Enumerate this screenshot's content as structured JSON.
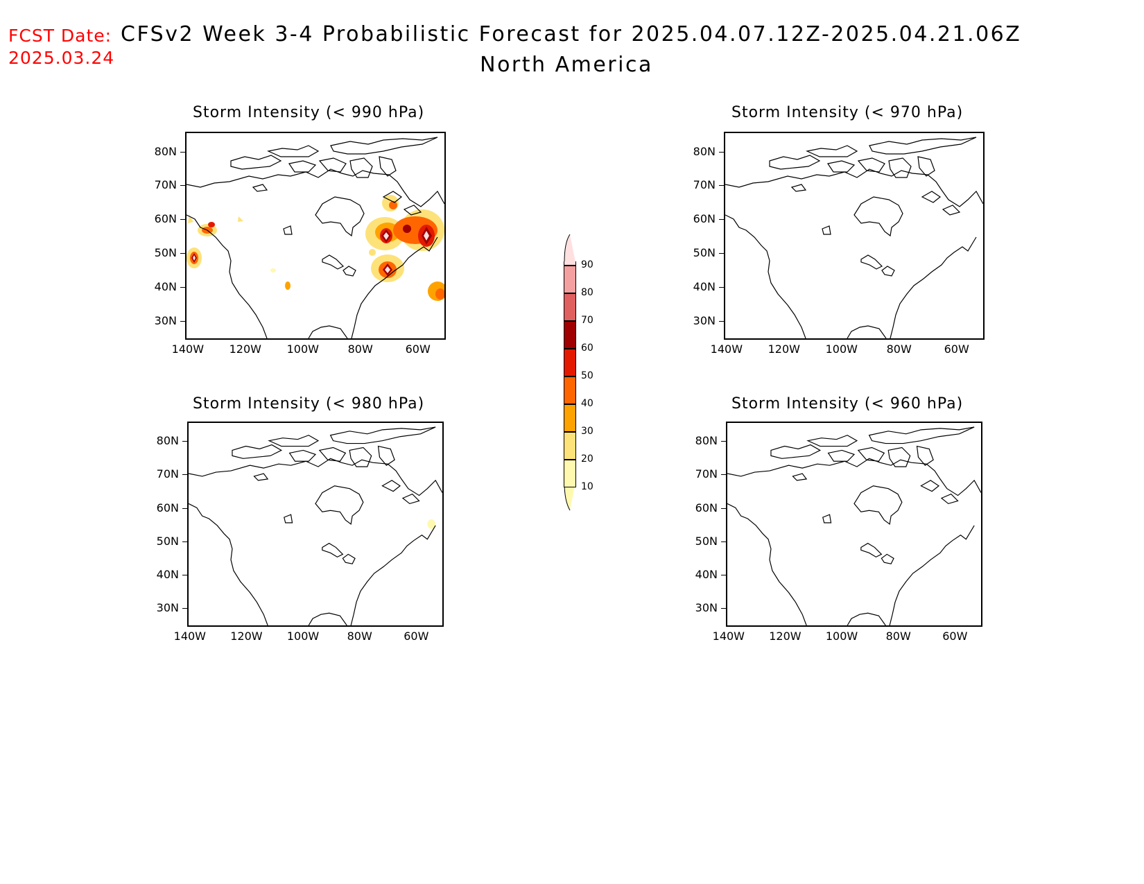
{
  "header": {
    "fcst_label": "FCST Date:",
    "fcst_date": "2025.03.24",
    "title": "CFSv2 Week 3-4 Probabilistic Forecast for 2025.04.07.12Z-2025.04.21.06Z",
    "subtitle": "North America"
  },
  "panels": [
    {
      "title": "Storm Intensity (< 990 hPa)"
    },
    {
      "title": "Storm Intensity (< 970 hPa)"
    },
    {
      "title": "Storm Intensity (< 980 hPa)"
    },
    {
      "title": "Storm Intensity (< 960 hPa)"
    }
  ],
  "axes": {
    "lat_labels": [
      "80N",
      "70N",
      "60N",
      "50N",
      "40N",
      "30N"
    ],
    "lon_labels": [
      "140W",
      "120W",
      "100W",
      "80W",
      "60W"
    ]
  },
  "colorbar": {
    "levels": [
      "10",
      "20",
      "30",
      "40",
      "50",
      "60",
      "70",
      "80",
      "90"
    ],
    "colors": [
      "#fff9b0",
      "#fde27a",
      "#fea200",
      "#ff6600",
      "#e31a00",
      "#a00000",
      "#e06060",
      "#f4a0a0",
      "#ffe0e0"
    ]
  }
}
